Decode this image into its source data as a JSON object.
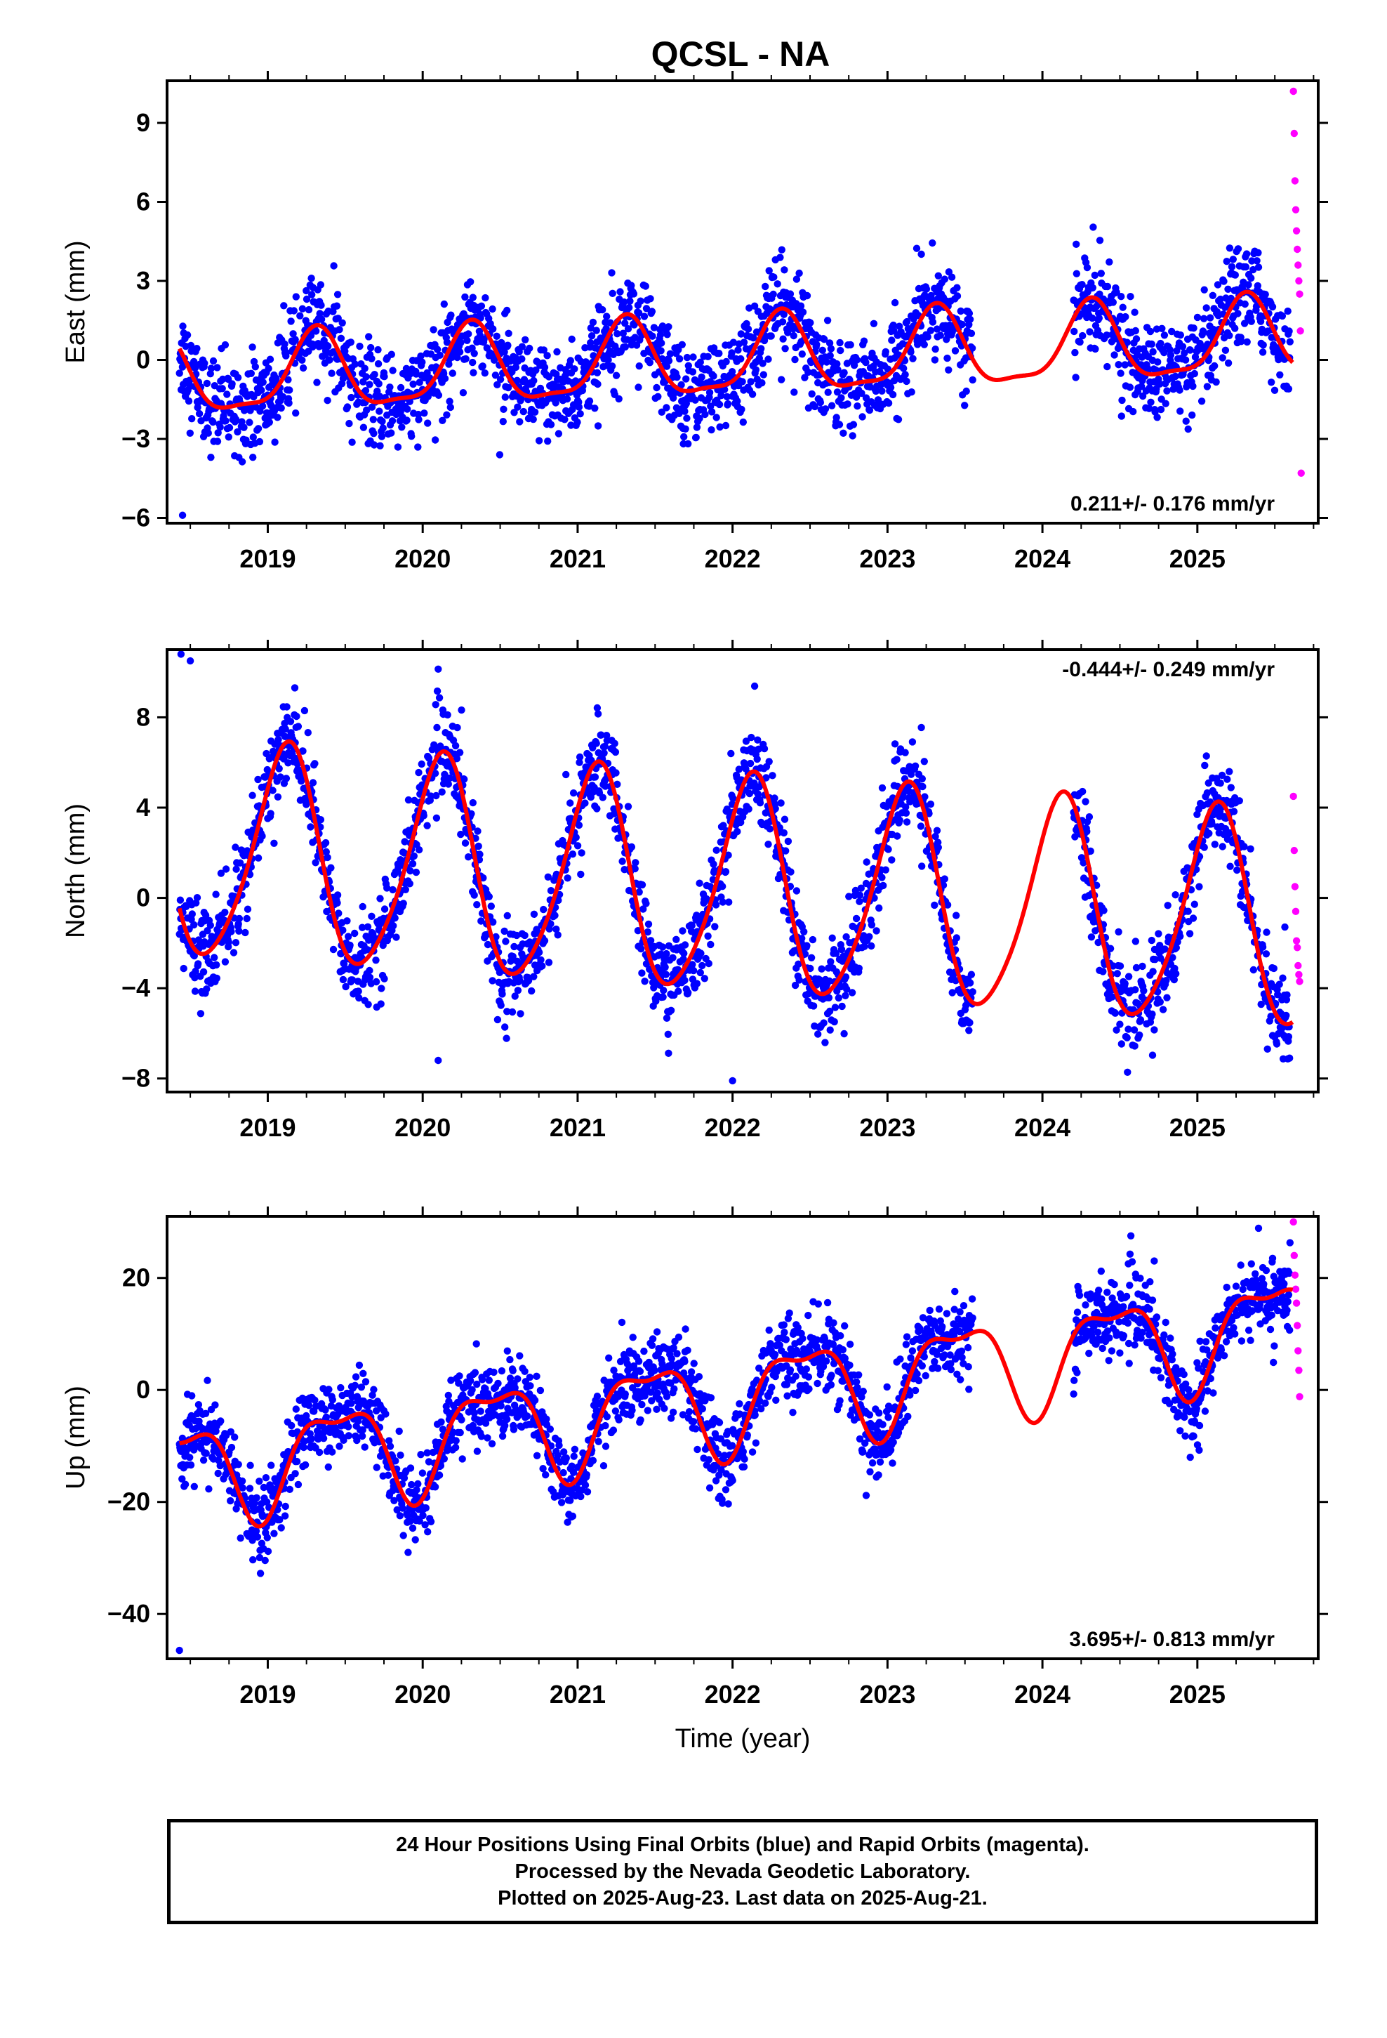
{
  "title": "QCSL - NA",
  "xlabel": "Time (year)",
  "colors": {
    "final_orbits": "#0000ff",
    "rapid_orbits": "#ff00ff",
    "model_curve": "#ff0000",
    "frame": "#000000"
  },
  "chart_data": [
    {
      "type": "scatter",
      "panel": "east",
      "ylabel": "East (mm)",
      "rate_label": "0.211+/- 0.176 mm/yr",
      "rate_position": "bottom-right",
      "xlim": [
        2018.35,
        2025.78
      ],
      "ylim": [
        -6.2,
        10.6
      ],
      "xticks": [
        "2019",
        "2020",
        "2021",
        "2022",
        "2023",
        "2024",
        "2025"
      ],
      "yticks": [
        "-6",
        "-3",
        "0",
        "3",
        "6",
        "9"
      ],
      "model": {
        "offset": 0.0,
        "trend": 0.211,
        "annual_sin": 1.35,
        "annual_cos": -0.55,
        "semi_sin": -0.35,
        "semi_cos": -0.25,
        "ref": 2022.0
      },
      "final_gaps": [
        [
          2023.55,
          2024.2
        ]
      ],
      "final_span": [
        2018.43,
        2025.6
      ],
      "final_scatter": 0.9,
      "rapid_points": [
        [
          2025.62,
          10.2
        ],
        [
          2025.625,
          8.6
        ],
        [
          2025.63,
          6.8
        ],
        [
          2025.635,
          5.7
        ],
        [
          2025.64,
          4.9
        ],
        [
          2025.645,
          4.2
        ],
        [
          2025.65,
          3.6
        ],
        [
          2025.655,
          3.0
        ],
        [
          2025.66,
          2.5
        ],
        [
          2025.665,
          1.1
        ],
        [
          2025.67,
          -4.3
        ]
      ],
      "outliers": [
        [
          2018.45,
          -5.9
        ]
      ],
      "grid": false
    },
    {
      "type": "scatter",
      "panel": "north",
      "ylabel": "North (mm)",
      "rate_label": "-0.444+/- 0.249 mm/yr",
      "rate_position": "top-right",
      "xlim": [
        2018.35,
        2025.78
      ],
      "ylim": [
        -8.6,
        11.0
      ],
      "xticks": [
        "2019",
        "2020",
        "2021",
        "2022",
        "2023",
        "2024",
        "2025"
      ],
      "yticks": [
        "-8",
        "-4",
        "0",
        "4",
        "8"
      ],
      "model": {
        "offset": 0.4,
        "trend": -0.444,
        "annual_sin": 3.2,
        "annual_cos": 3.5,
        "semi_sin": 0.5,
        "semi_cos": -0.4,
        "ref": 2022.0
      },
      "final_gaps": [
        [
          2023.55,
          2024.2
        ]
      ],
      "final_span": [
        2018.43,
        2025.6
      ],
      "final_scatter": 1.0,
      "rapid_points": [
        [
          2025.62,
          4.5
        ],
        [
          2025.625,
          2.1
        ],
        [
          2025.63,
          0.5
        ],
        [
          2025.635,
          -0.6
        ],
        [
          2025.64,
          -1.9
        ],
        [
          2025.645,
          -2.2
        ],
        [
          2025.65,
          -3.0
        ],
        [
          2025.655,
          -3.4
        ],
        [
          2025.66,
          -3.7
        ]
      ],
      "outliers": [
        [
          2018.44,
          10.8
        ],
        [
          2018.5,
          10.5
        ],
        [
          2020.1,
          -7.2
        ],
        [
          2022.0,
          -8.1
        ]
      ],
      "grid": false
    },
    {
      "type": "scatter",
      "panel": "up",
      "ylabel": "Up (mm)",
      "rate_label": "3.695+/- 0.813 mm/yr",
      "rate_position": "bottom-right",
      "xlim": [
        2018.35,
        2025.78
      ],
      "ylim": [
        -48.0,
        31.0
      ],
      "xticks": [
        "2019",
        "2020",
        "2021",
        "2022",
        "2023",
        "2024",
        "2025"
      ],
      "yticks": [
        "-40",
        "-20",
        "0",
        "20"
      ],
      "model": {
        "offset": -1.5,
        "trend": 3.695,
        "annual_sin": 2.5,
        "annual_cos": -8.0,
        "semi_sin": 2.0,
        "semi_cos": -2.5,
        "ref": 2022.0
      },
      "final_gaps": [
        [
          2023.55,
          2024.2
        ]
      ],
      "final_span": [
        2018.43,
        2025.6
      ],
      "final_scatter": 3.5,
      "rapid_points": [
        [
          2025.62,
          30.0
        ],
        [
          2025.625,
          24.0
        ],
        [
          2025.63,
          20.5
        ],
        [
          2025.635,
          18.0
        ],
        [
          2025.64,
          15.5
        ],
        [
          2025.645,
          11.5
        ],
        [
          2025.65,
          7.0
        ],
        [
          2025.655,
          3.5
        ],
        [
          2025.66,
          -1.2
        ]
      ],
      "outliers": [
        [
          2018.43,
          -46.5
        ]
      ],
      "grid": false
    }
  ],
  "caption": {
    "line1": "24 Hour Positions Using Final Orbits (blue) and Rapid Orbits (magenta).",
    "line2": "Processed by the Nevada Geodetic Laboratory.",
    "line3": "Plotted on 2025-Aug-23. Last data on 2025-Aug-21."
  }
}
